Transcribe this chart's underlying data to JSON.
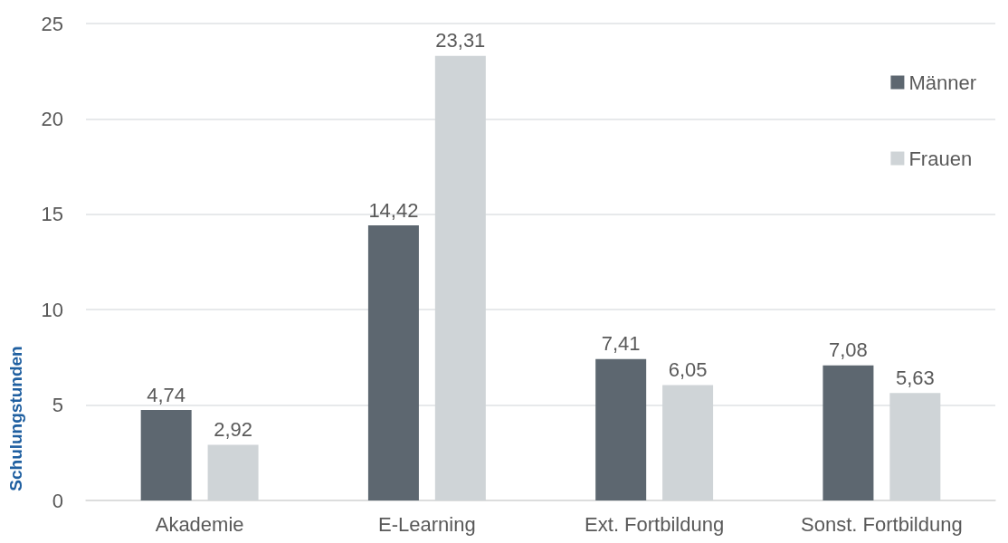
{
  "chart_data": {
    "type": "bar",
    "ylabel": "Schulungstunden",
    "categories": [
      "Akademie",
      "E-Learning",
      "Ext. Fortbildung",
      "Sonst. Fortbildung"
    ],
    "series": [
      {
        "name": "Männer",
        "color": "#5d6770",
        "values": [
          4.74,
          14.42,
          7.41,
          7.08
        ],
        "value_labels": [
          "4,74",
          "14,42",
          "7,41",
          "7,08"
        ]
      },
      {
        "name": "Frauen",
        "color": "#cfd4d7",
        "values": [
          2.92,
          23.31,
          6.05,
          5.63
        ],
        "value_labels": [
          "2,92",
          "23,31",
          "6,05",
          "5,63"
        ]
      }
    ],
    "ylim": [
      0,
      25
    ],
    "yticks": [
      0,
      5,
      10,
      15,
      20,
      25
    ],
    "grid": "y",
    "legend": "top right"
  }
}
